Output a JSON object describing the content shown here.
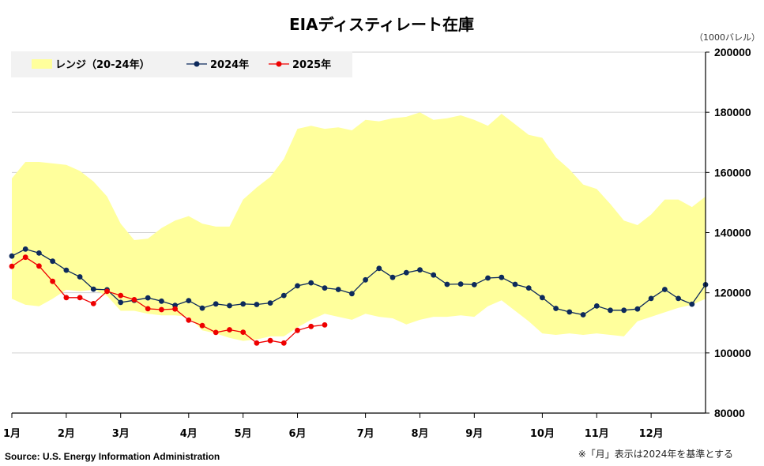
{
  "chart_data": {
    "type": "line",
    "title": "EIAディスティレート在庫",
    "unit_label": "（1000バレル）",
    "y_ticks": [
      "200000",
      "180000",
      "160000",
      "140000",
      "120000",
      "100000",
      "80000"
    ],
    "ylim": [
      80000,
      200000
    ],
    "x_month_labels": [
      "1月",
      "2月",
      "3月",
      "4月",
      "5月",
      "6月",
      "7月",
      "8月",
      "9月",
      "10月",
      "11月",
      "12月"
    ],
    "grid": true,
    "legend_position": "top-left",
    "legend": {
      "range": "レンジ（20-24年）",
      "s2024": "2024年",
      "s2025": "2025年"
    },
    "source": "Source: U.S. Energy Information Administration",
    "note": "※「月」表示は2024年を基準とする",
    "colors": {
      "range": "#ffff9c",
      "s2024": "#0d2a5c",
      "s2025": "#ee0000",
      "grid": "#d0d0d0"
    },
    "range_max": [
      158000,
      163500,
      163500,
      163000,
      162500,
      160500,
      157000,
      152000,
      143000,
      137500,
      138000,
      141500,
      144000,
      145500,
      143000,
      142000,
      142000,
      151000,
      155000,
      158500,
      164500,
      174500,
      175500,
      174500,
      175000,
      174000,
      177500,
      177000,
      178000,
      178500,
      180000,
      177500,
      178000,
      179000,
      177500,
      175500,
      179500,
      176000,
      172500,
      171500,
      165000,
      161000,
      156000,
      154500,
      149500,
      144000,
      142500,
      146000,
      151000,
      151000,
      148500,
      152000
    ],
    "range_min": [
      118000,
      116000,
      115500,
      118000,
      121000,
      120500,
      121000,
      119000,
      114000,
      114000,
      113000,
      112500,
      112500,
      112000,
      107500,
      106500,
      105000,
      104000,
      104500,
      105500,
      105500,
      108500,
      111000,
      113000,
      112000,
      111000,
      113000,
      112000,
      111500,
      109500,
      111000,
      112000,
      112000,
      112500,
      112000,
      115500,
      117500,
      114000,
      110500,
      106500,
      106000,
      106500,
      106000,
      106500,
      106000,
      105500,
      110500,
      112000,
      113500,
      115000,
      116000,
      118000
    ],
    "s2024_values": [
      132200,
      134500,
      133200,
      130500,
      127500,
      125300,
      121200,
      121000,
      116800,
      117500,
      118300,
      117200,
      115800,
      117400,
      114900,
      116300,
      115700,
      116300,
      116100,
      116600,
      119100,
      122300,
      123300,
      121600,
      121100,
      119700,
      124300,
      128100,
      125100,
      126700,
      127600,
      125900,
      122800,
      122900,
      122700,
      124900,
      125100,
      122800,
      121600,
      118400,
      114800,
      113600,
      112700,
      115600,
      114200,
      114200,
      114600,
      118100,
      121100,
      118100,
      116200,
      122700
    ],
    "s2025_values": [
      128800,
      131800,
      128900,
      123800,
      118400,
      118400,
      116400,
      120500,
      119100,
      117700,
      114700,
      114400,
      114600,
      110900,
      109100,
      106800,
      107700,
      106900,
      103300,
      104100,
      103300,
      107500,
      108800,
      109300
    ]
  }
}
